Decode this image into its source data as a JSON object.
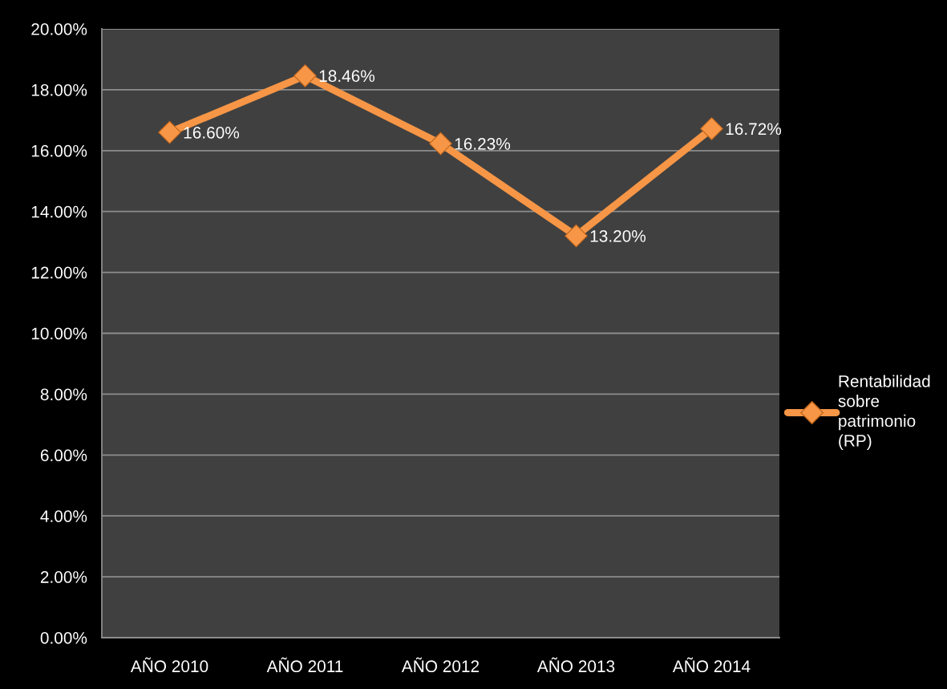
{
  "chart_data": {
    "type": "line",
    "categories": [
      "AÑO 2010",
      "AÑO 2011",
      "AÑO 2012",
      "AÑO 2013",
      "AÑO 2014"
    ],
    "series": [
      {
        "name": "Rentabilidad sobre patrimonio (RP)",
        "color": "#f79646",
        "values": [
          16.6,
          18.46,
          16.23,
          13.2,
          16.72
        ],
        "value_labels": [
          "16.60%",
          "18.46%",
          "16.23%",
          "13.20%",
          "16.72%"
        ]
      }
    ],
    "ylim": [
      0,
      20
    ],
    "yticks": [
      {
        "value": 0,
        "label": "0.00%"
      },
      {
        "value": 2,
        "label": "2.00%"
      },
      {
        "value": 4,
        "label": "4.00%"
      },
      {
        "value": 6,
        "label": "6.00%"
      },
      {
        "value": 8,
        "label": "8.00%"
      },
      {
        "value": 10,
        "label": "10.00%"
      },
      {
        "value": 12,
        "label": "12.00%"
      },
      {
        "value": 14,
        "label": "14.00%"
      },
      {
        "value": 16,
        "label": "16.00%"
      },
      {
        "value": 18,
        "label": "18.00%"
      },
      {
        "value": 20,
        "label": "20.00%"
      }
    ],
    "grid": "y",
    "legend": "right",
    "marker": "diamond",
    "line_style": "solid"
  }
}
